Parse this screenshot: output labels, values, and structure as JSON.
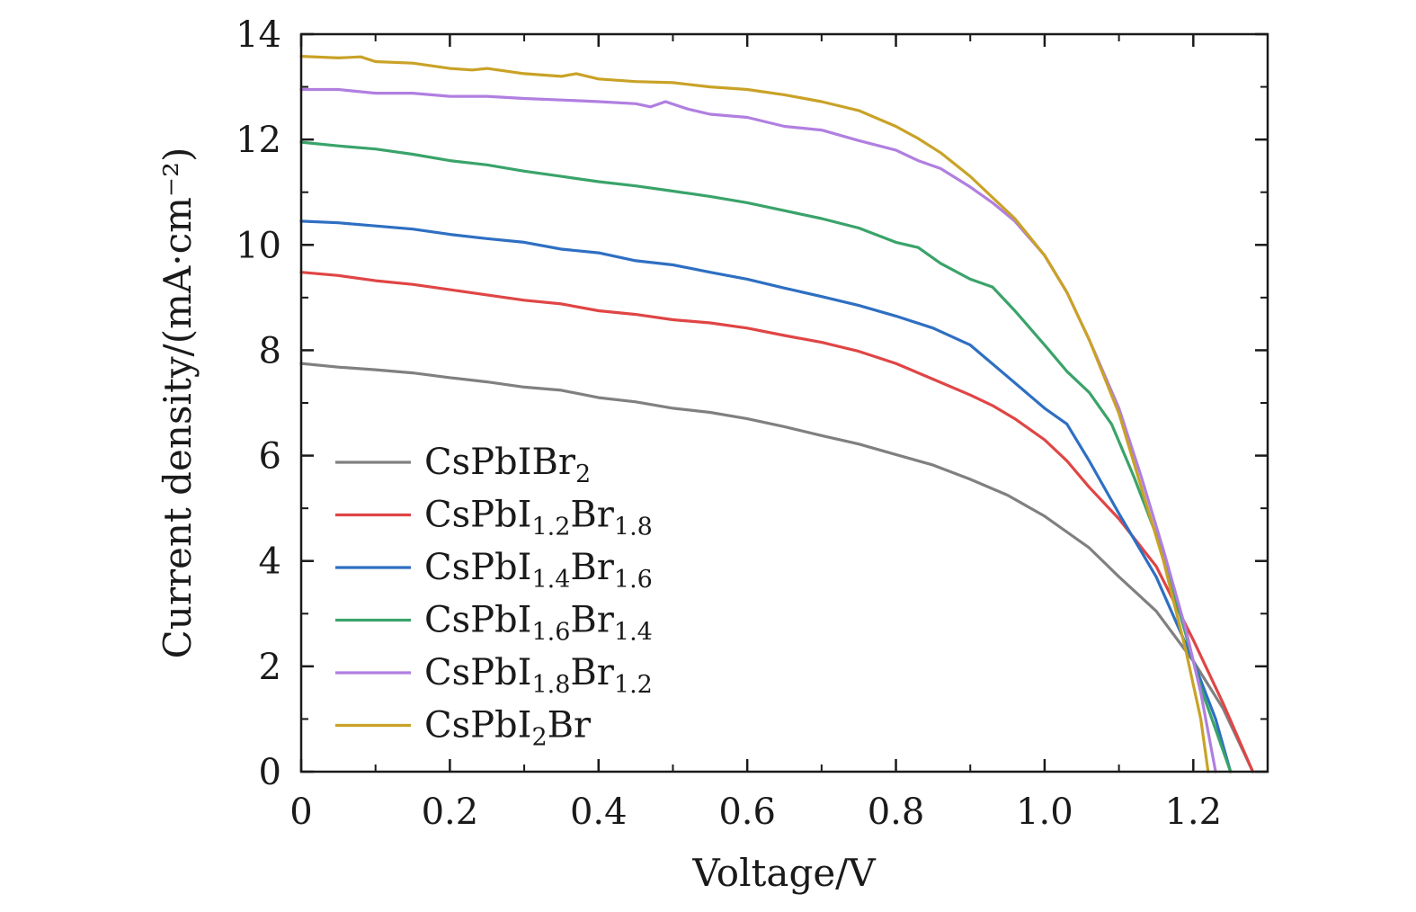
{
  "chart_data": {
    "type": "line",
    "title": "",
    "xlabel": "Voltage/V",
    "ylabel": "Current density/(mA·cm⁻²)",
    "xlim": [
      0,
      1.3
    ],
    "ylim": [
      0,
      14
    ],
    "xticks": [
      0,
      0.2,
      0.4,
      0.6,
      0.8,
      1.0,
      1.2
    ],
    "xtick_labels": [
      "0",
      "0.2",
      "0.4",
      "0.6",
      "0.8",
      "1.0",
      "1.2"
    ],
    "yticks": [
      0,
      2,
      4,
      6,
      8,
      10,
      12,
      14
    ],
    "ytick_labels": [
      "0",
      "2",
      "4",
      "6",
      "8",
      "10",
      "12",
      "14"
    ],
    "grid": false,
    "legend_position": "lower-left",
    "series": [
      {
        "name": "CsPbIBr2",
        "label_parts": [
          [
            "CsPbIBr",
            ""
          ],
          [
            "2",
            "sub"
          ]
        ],
        "color": "#808080",
        "points": [
          [
            0,
            7.75
          ],
          [
            0.05,
            7.68
          ],
          [
            0.1,
            7.63
          ],
          [
            0.15,
            7.57
          ],
          [
            0.2,
            7.48
          ],
          [
            0.25,
            7.4
          ],
          [
            0.3,
            7.3
          ],
          [
            0.35,
            7.24
          ],
          [
            0.4,
            7.1
          ],
          [
            0.45,
            7.02
          ],
          [
            0.5,
            6.9
          ],
          [
            0.55,
            6.82
          ],
          [
            0.6,
            6.7
          ],
          [
            0.65,
            6.55
          ],
          [
            0.7,
            6.38
          ],
          [
            0.75,
            6.22
          ],
          [
            0.8,
            6.02
          ],
          [
            0.85,
            5.82
          ],
          [
            0.9,
            5.55
          ],
          [
            0.95,
            5.25
          ],
          [
            1.0,
            4.85
          ],
          [
            1.03,
            4.55
          ],
          [
            1.06,
            4.25
          ],
          [
            1.1,
            3.7
          ],
          [
            1.15,
            3.05
          ],
          [
            1.2,
            2.1
          ],
          [
            1.24,
            1.2
          ],
          [
            1.28,
            0.0
          ]
        ]
      },
      {
        "name": "CsPbI1.2Br1.8",
        "label_parts": [
          [
            "CsPbI",
            ""
          ],
          [
            "1.2",
            "sub"
          ],
          [
            "Br",
            ""
          ],
          [
            "1.8",
            "sub"
          ]
        ],
        "color": "#e04545",
        "points": [
          [
            0,
            9.48
          ],
          [
            0.05,
            9.42
          ],
          [
            0.1,
            9.32
          ],
          [
            0.15,
            9.25
          ],
          [
            0.2,
            9.15
          ],
          [
            0.25,
            9.05
          ],
          [
            0.3,
            8.95
          ],
          [
            0.35,
            8.88
          ],
          [
            0.4,
            8.75
          ],
          [
            0.45,
            8.68
          ],
          [
            0.5,
            8.58
          ],
          [
            0.55,
            8.52
          ],
          [
            0.6,
            8.42
          ],
          [
            0.65,
            8.28
          ],
          [
            0.7,
            8.15
          ],
          [
            0.75,
            7.98
          ],
          [
            0.8,
            7.75
          ],
          [
            0.85,
            7.45
          ],
          [
            0.9,
            7.15
          ],
          [
            0.93,
            6.95
          ],
          [
            0.96,
            6.7
          ],
          [
            1.0,
            6.3
          ],
          [
            1.03,
            5.9
          ],
          [
            1.06,
            5.4
          ],
          [
            1.1,
            4.8
          ],
          [
            1.15,
            3.9
          ],
          [
            1.2,
            2.5
          ],
          [
            1.24,
            1.3
          ],
          [
            1.28,
            0.0
          ]
        ]
      },
      {
        "name": "CsPbI1.4Br1.6",
        "label_parts": [
          [
            "CsPbI",
            ""
          ],
          [
            "1.4",
            "sub"
          ],
          [
            "Br",
            ""
          ],
          [
            "1.6",
            "sub"
          ]
        ],
        "color": "#2e6fc2",
        "points": [
          [
            0,
            10.45
          ],
          [
            0.05,
            10.42
          ],
          [
            0.1,
            10.36
          ],
          [
            0.15,
            10.3
          ],
          [
            0.2,
            10.2
          ],
          [
            0.25,
            10.12
          ],
          [
            0.3,
            10.05
          ],
          [
            0.35,
            9.92
          ],
          [
            0.4,
            9.85
          ],
          [
            0.45,
            9.7
          ],
          [
            0.5,
            9.62
          ],
          [
            0.55,
            9.48
          ],
          [
            0.6,
            9.35
          ],
          [
            0.65,
            9.18
          ],
          [
            0.7,
            9.02
          ],
          [
            0.75,
            8.85
          ],
          [
            0.8,
            8.65
          ],
          [
            0.85,
            8.42
          ],
          [
            0.9,
            8.1
          ],
          [
            0.95,
            7.5
          ],
          [
            1.0,
            6.9
          ],
          [
            1.03,
            6.6
          ],
          [
            1.06,
            5.9
          ],
          [
            1.1,
            4.9
          ],
          [
            1.15,
            3.7
          ],
          [
            1.2,
            2.1
          ],
          [
            1.23,
            1.0
          ],
          [
            1.25,
            0.0
          ]
        ]
      },
      {
        "name": "CsPbI1.6Br1.4",
        "label_parts": [
          [
            "CsPbI",
            ""
          ],
          [
            "1.6",
            "sub"
          ],
          [
            "Br",
            ""
          ],
          [
            "1.4",
            "sub"
          ]
        ],
        "color": "#3aa36a",
        "points": [
          [
            0,
            11.95
          ],
          [
            0.05,
            11.88
          ],
          [
            0.1,
            11.82
          ],
          [
            0.15,
            11.72
          ],
          [
            0.2,
            11.6
          ],
          [
            0.25,
            11.52
          ],
          [
            0.3,
            11.4
          ],
          [
            0.35,
            11.3
          ],
          [
            0.4,
            11.2
          ],
          [
            0.45,
            11.12
          ],
          [
            0.5,
            11.02
          ],
          [
            0.55,
            10.92
          ],
          [
            0.6,
            10.8
          ],
          [
            0.65,
            10.65
          ],
          [
            0.7,
            10.5
          ],
          [
            0.75,
            10.32
          ],
          [
            0.8,
            10.05
          ],
          [
            0.83,
            9.95
          ],
          [
            0.86,
            9.65
          ],
          [
            0.9,
            9.35
          ],
          [
            0.93,
            9.2
          ],
          [
            0.96,
            8.75
          ],
          [
            1.0,
            8.1
          ],
          [
            1.03,
            7.6
          ],
          [
            1.06,
            7.2
          ],
          [
            1.09,
            6.6
          ],
          [
            1.12,
            5.6
          ],
          [
            1.15,
            4.5
          ],
          [
            1.18,
            3.1
          ],
          [
            1.21,
            1.6
          ],
          [
            1.25,
            0.0
          ]
        ]
      },
      {
        "name": "CsPbI1.8Br1.2",
        "label_parts": [
          [
            "CsPbI",
            ""
          ],
          [
            "1.8",
            "sub"
          ],
          [
            "Br",
            ""
          ],
          [
            "1.2",
            "sub"
          ]
        ],
        "color": "#b07fe0",
        "points": [
          [
            0,
            12.95
          ],
          [
            0.05,
            12.95
          ],
          [
            0.1,
            12.88
          ],
          [
            0.15,
            12.88
          ],
          [
            0.2,
            12.82
          ],
          [
            0.25,
            12.82
          ],
          [
            0.3,
            12.78
          ],
          [
            0.35,
            12.75
          ],
          [
            0.4,
            12.72
          ],
          [
            0.45,
            12.68
          ],
          [
            0.47,
            12.62
          ],
          [
            0.49,
            12.72
          ],
          [
            0.52,
            12.58
          ],
          [
            0.55,
            12.48
          ],
          [
            0.6,
            12.42
          ],
          [
            0.65,
            12.25
          ],
          [
            0.7,
            12.18
          ],
          [
            0.75,
            11.98
          ],
          [
            0.8,
            11.8
          ],
          [
            0.83,
            11.6
          ],
          [
            0.86,
            11.45
          ],
          [
            0.9,
            11.1
          ],
          [
            0.93,
            10.8
          ],
          [
            0.96,
            10.45
          ],
          [
            1.0,
            9.8
          ],
          [
            1.03,
            9.1
          ],
          [
            1.06,
            8.2
          ],
          [
            1.1,
            6.9
          ],
          [
            1.13,
            5.6
          ],
          [
            1.16,
            4.2
          ],
          [
            1.19,
            2.7
          ],
          [
            1.21,
            1.5
          ],
          [
            1.23,
            0.0
          ]
        ]
      },
      {
        "name": "CsPbI2Br",
        "label_parts": [
          [
            "CsPbI",
            ""
          ],
          [
            "2",
            "sub"
          ],
          [
            "Br",
            ""
          ]
        ],
        "color": "#c9a227",
        "points": [
          [
            0,
            13.58
          ],
          [
            0.05,
            13.55
          ],
          [
            0.08,
            13.57
          ],
          [
            0.1,
            13.48
          ],
          [
            0.15,
            13.45
          ],
          [
            0.2,
            13.35
          ],
          [
            0.23,
            13.32
          ],
          [
            0.25,
            13.35
          ],
          [
            0.3,
            13.25
          ],
          [
            0.35,
            13.2
          ],
          [
            0.37,
            13.25
          ],
          [
            0.4,
            13.15
          ],
          [
            0.45,
            13.1
          ],
          [
            0.5,
            13.08
          ],
          [
            0.55,
            13.0
          ],
          [
            0.6,
            12.95
          ],
          [
            0.65,
            12.85
          ],
          [
            0.7,
            12.72
          ],
          [
            0.75,
            12.55
          ],
          [
            0.8,
            12.25
          ],
          [
            0.83,
            12.02
          ],
          [
            0.86,
            11.75
          ],
          [
            0.9,
            11.3
          ],
          [
            0.93,
            10.9
          ],
          [
            0.96,
            10.5
          ],
          [
            1.0,
            9.8
          ],
          [
            1.03,
            9.1
          ],
          [
            1.06,
            8.2
          ],
          [
            1.1,
            6.8
          ],
          [
            1.13,
            5.4
          ],
          [
            1.16,
            4.0
          ],
          [
            1.19,
            2.3
          ],
          [
            1.21,
            1.0
          ],
          [
            1.22,
            0.0
          ]
        ]
      }
    ]
  }
}
